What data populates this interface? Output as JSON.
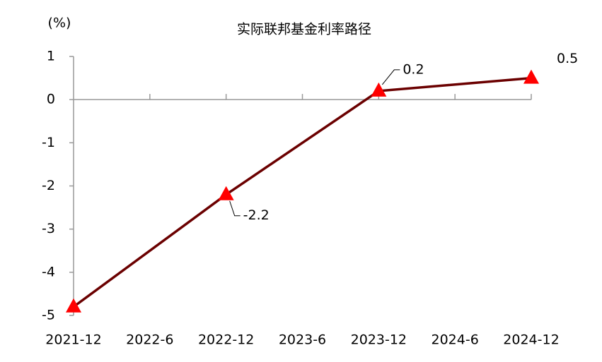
{
  "chart_data": {
    "type": "line",
    "title": "实际联邦基金利率路径",
    "y_label": "(%)",
    "xticks": [
      "2021-12",
      "2022-6",
      "2022-12",
      "2023-6",
      "2023-12",
      "2024-6",
      "2024-12"
    ],
    "x": [
      "2021-12",
      "2022-12",
      "2023-12",
      "2024-12"
    ],
    "series": [
      {
        "color": "#6b0000",
        "marker_color": "#ff0000",
        "values": [
          -4.8,
          -2.2,
          0.2,
          0.5
        ],
        "value_labels": [
          null,
          "-2.2",
          "0.2",
          "0.5"
        ]
      }
    ],
    "ylim": [
      -5,
      1
    ],
    "yticks": [
      -5,
      -4,
      -3,
      -2,
      -1,
      0,
      1
    ]
  }
}
